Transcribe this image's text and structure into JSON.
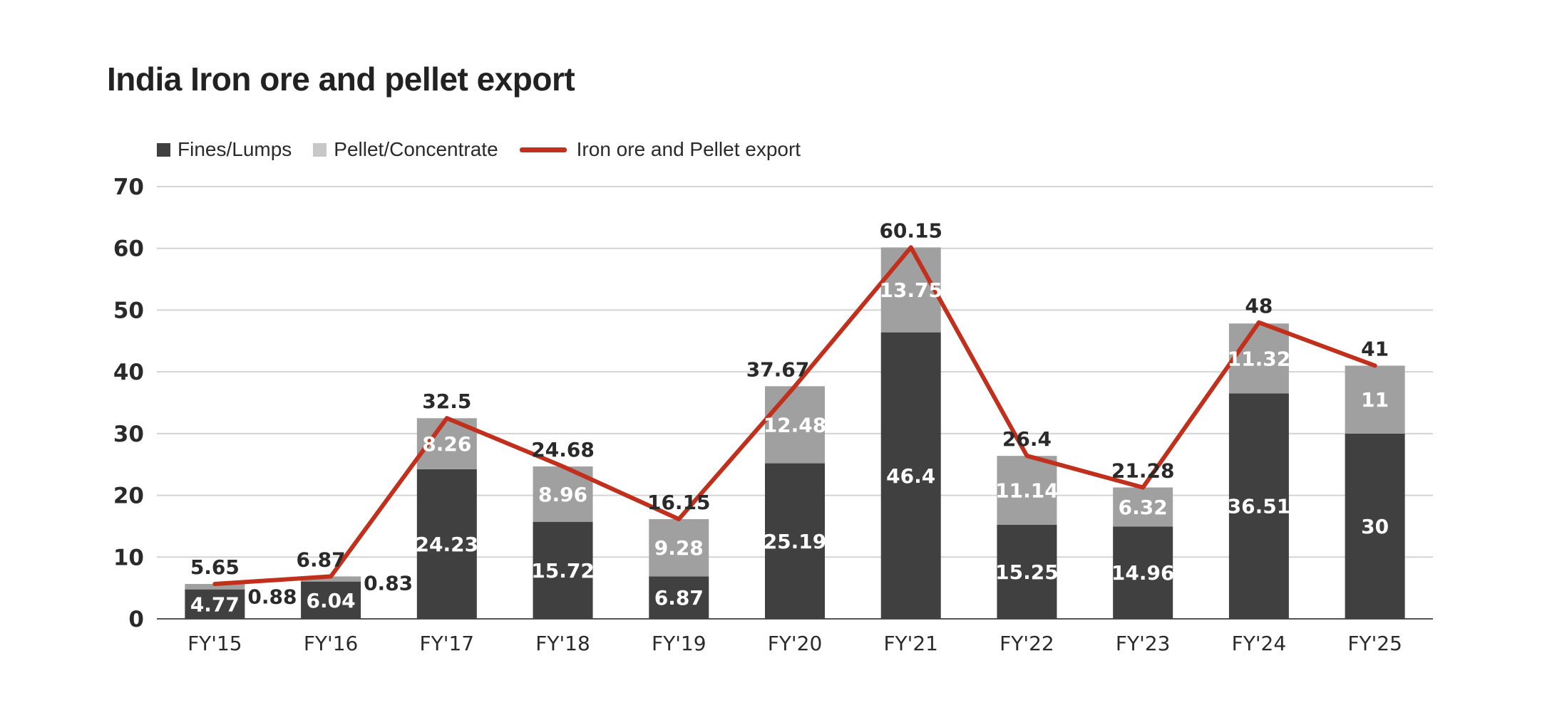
{
  "chart_data": {
    "type": "bar",
    "stacked": true,
    "title": "India Iron ore and pellet export",
    "categories": [
      "FY'15",
      "FY'16",
      "FY'17",
      "FY'18",
      "FY'19",
      "FY'20",
      "FY'21",
      "FY'22",
      "FY'23",
      "FY'24",
      "FY'25"
    ],
    "series": [
      {
        "name": "Fines/Lumps",
        "type": "bar",
        "color": "#404040",
        "values": [
          4.77,
          6.04,
          24.23,
          15.72,
          6.87,
          25.19,
          46.4,
          15.25,
          14.96,
          36.51,
          30
        ]
      },
      {
        "name": "Pellet/Concentrate",
        "type": "bar",
        "color": "#a0a0a0",
        "values": [
          0.88,
          0.83,
          8.26,
          8.96,
          9.28,
          12.48,
          13.75,
          11.14,
          6.32,
          11.32,
          11
        ]
      },
      {
        "name": "Iron ore and Pellet export",
        "type": "line",
        "color": "#c0301c",
        "values": [
          5.65,
          6.87,
          32.5,
          24.68,
          16.15,
          37.67,
          60.15,
          26.4,
          21.28,
          48,
          41
        ]
      }
    ],
    "ylim": [
      0,
      70
    ],
    "yticks": [
      0,
      10,
      20,
      30,
      40,
      50,
      60,
      70
    ],
    "xlabel": "",
    "ylabel": "",
    "grid": true,
    "legend_position": "top-left"
  }
}
